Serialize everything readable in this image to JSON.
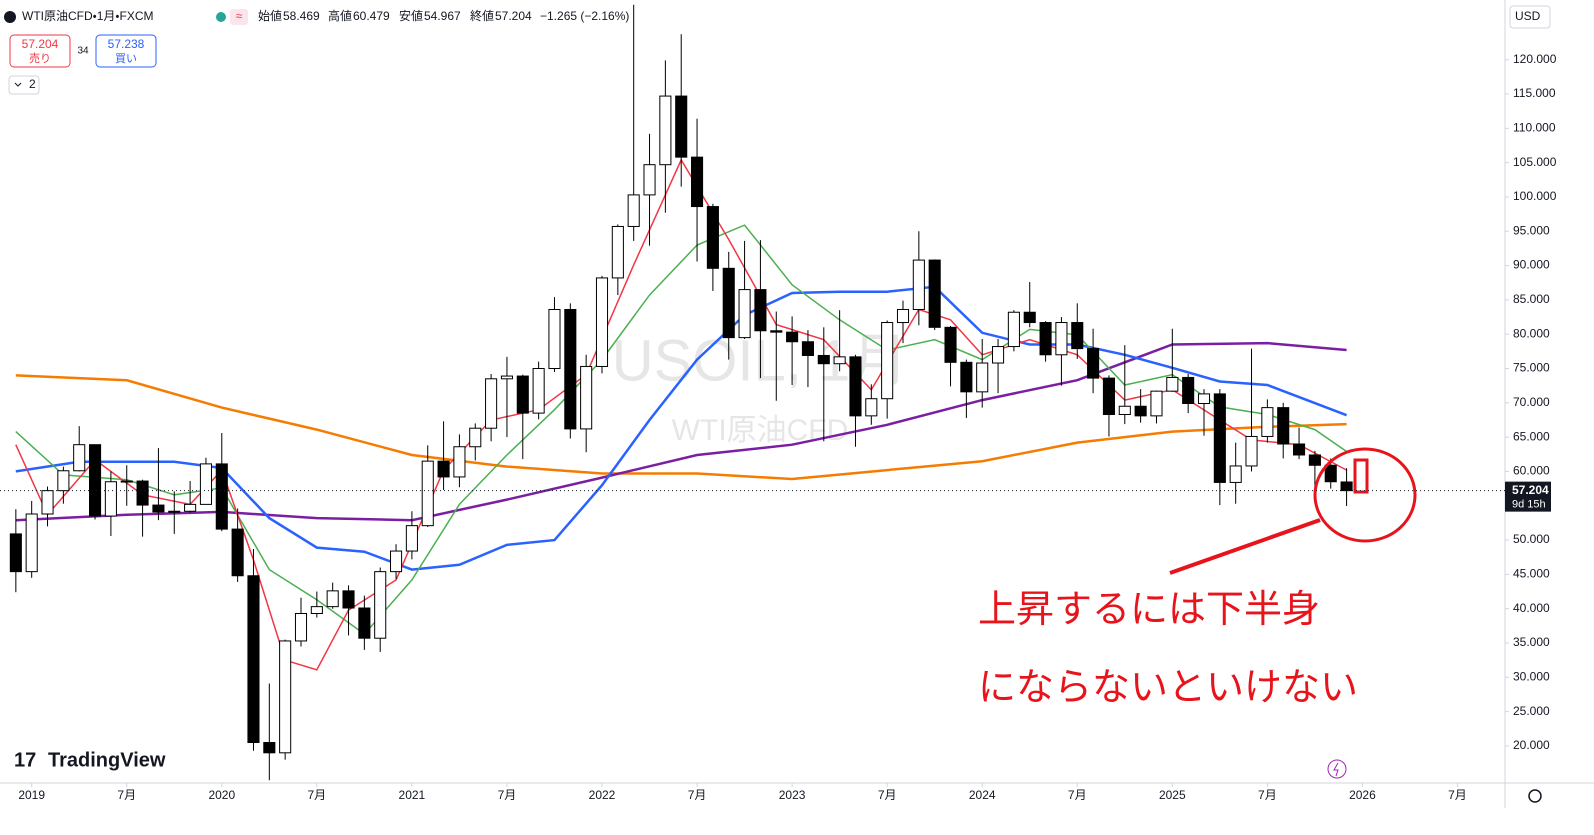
{
  "header": {
    "symbol": "WTI原油CFD・1月・FXCM",
    "open_label": "始値",
    "high_label": "高値",
    "low_label": "安値",
    "close_label": "終値",
    "change": "−1.265 (−2.16%)",
    "sell_price": 57.204,
    "sell_label": "売り",
    "spread": 34,
    "buy_price": 57.238,
    "buy_label": "買い",
    "indicator_count": 2,
    "currency": "USD",
    "logo": "TradingView"
  },
  "chart_data": {
    "type": "candlestick",
    "watermark": "USOIL, 1月",
    "watermark_sub": "WTI原油CFD",
    "annotations": [
      "上昇するには下半身",
      "にならないといけない"
    ],
    "x": [
      "2018-12",
      "2019-01",
      "2019-02",
      "2019-03",
      "2019-04",
      "2019-05",
      "2019-06",
      "2019-07",
      "2019-08",
      "2019-09",
      "2019-10",
      "2019-11",
      "2019-12",
      "2020-01",
      "2020-02",
      "2020-03",
      "2020-04",
      "2020-05",
      "2020-06",
      "2020-07",
      "2020-08",
      "2020-09",
      "2020-10",
      "2020-11",
      "2020-12",
      "2021-01",
      "2021-02",
      "2021-03",
      "2021-04",
      "2021-05",
      "2021-06",
      "2021-07",
      "2021-08",
      "2021-09",
      "2021-10",
      "2021-11",
      "2021-12",
      "2022-01",
      "2022-02",
      "2022-03",
      "2022-04",
      "2022-05",
      "2022-06",
      "2022-07",
      "2022-08",
      "2022-09",
      "2022-10",
      "2022-11",
      "2022-12",
      "2023-01",
      "2023-02",
      "2023-03",
      "2023-04",
      "2023-05",
      "2023-06",
      "2023-07",
      "2023-08",
      "2023-09",
      "2023-10",
      "2023-11",
      "2023-12",
      "2024-01",
      "2024-02",
      "2024-03",
      "2024-04",
      "2024-05",
      "2024-06",
      "2024-07",
      "2024-08",
      "2024-09",
      "2024-10",
      "2024-11",
      "2024-12",
      "2025-01",
      "2025-02",
      "2025-03",
      "2025-04",
      "2025-05",
      "2025-06",
      "2025-07",
      "2025-08",
      "2025-09",
      "2025-10",
      "2025-11",
      "2025-12"
    ],
    "open": [
      50.9,
      45.4,
      53.8,
      57.2,
      60.1,
      63.9,
      53.5,
      58.5,
      58.6,
      55.1,
      54.1,
      54.2,
      55.2,
      61.1,
      51.6,
      44.8,
      20.5,
      19.0,
      35.3,
      39.3,
      40.3,
      42.6,
      40.1,
      35.7,
      45.4,
      48.4,
      52.1,
      61.5,
      59.2,
      63.6,
      66.3,
      73.5,
      73.9,
      68.5,
      75.0,
      83.6,
      66.2,
      75.3,
      88.2,
      95.7,
      100.3,
      104.7,
      114.7,
      105.8,
      98.6,
      89.6,
      79.5,
      86.5,
      80.5,
      80.3,
      78.9,
      76.9,
      75.7,
      76.7,
      68.1,
      70.6,
      81.7,
      83.6,
      90.8,
      81.0,
      75.9,
      71.6,
      75.8,
      78.2,
      83.2,
      81.7,
      77.0,
      81.7,
      77.9,
      73.6,
      68.3,
      69.5,
      68.1,
      71.7,
      73.7,
      69.9,
      71.3,
      58.4,
      60.8,
      65.1,
      69.3,
      64.0,
      62.4,
      60.9,
      58.469
    ],
    "high": [
      54.5,
      55.7,
      57.8,
      60.7,
      66.6,
      63.9,
      60.0,
      60.9,
      58.8,
      63.4,
      57.1,
      58.6,
      62.0,
      65.6,
      54.6,
      48.7,
      29.1,
      35.5,
      41.6,
      42.5,
      43.8,
      43.4,
      41.9,
      46.0,
      49.4,
      54.2,
      63.8,
      67.3,
      65.4,
      67.0,
      74.2,
      76.7,
      74.1,
      76.0,
      85.4,
      84.5,
      77.0,
      88.5,
      96.0,
      128.0,
      109.2,
      119.9,
      123.7,
      111.4,
      99.0,
      92.0,
      93.6,
      93.7,
      83.3,
      82.6,
      80.6,
      81.0,
      83.5,
      77.0,
      72.7,
      82.0,
      84.9,
      95.0,
      90.9,
      81.2,
      76.3,
      79.3,
      79.3,
      83.5,
      87.6,
      81.9,
      82.5,
      84.5,
      80.8,
      74.0,
      78.4,
      72.0,
      71.8,
      80.8,
      74.2,
      72.0,
      72.0,
      64.2,
      77.9,
      70.5,
      70.0,
      66.4,
      63.0,
      61.9,
      60.479
    ],
    "low": [
      42.4,
      44.5,
      52.0,
      55.3,
      60.0,
      53.0,
      50.6,
      55.0,
      50.5,
      52.9,
      50.9,
      54.0,
      55.2,
      51.3,
      43.9,
      19.3,
      15.0,
      18.0,
      34.5,
      38.7,
      40.0,
      36.1,
      34.0,
      33.7,
      44.3,
      47.2,
      51.9,
      57.3,
      57.7,
      61.6,
      64.4,
      65.0,
      61.8,
      67.6,
      74.5,
      64.8,
      62.8,
      74.3,
      85.7,
      93.6,
      92.9,
      97.7,
      101.5,
      90.6,
      86.3,
      76.3,
      79.3,
      73.6,
      70.3,
      72.6,
      72.3,
      64.4,
      74.6,
      63.6,
      66.8,
      67.7,
      78.7,
      81.3,
      80.6,
      72.4,
      67.8,
      69.3,
      71.4,
      77.5,
      81.0,
      76.0,
      72.5,
      76.4,
      71.4,
      65.1,
      66.9,
      67.1,
      67.0,
      71.6,
      68.5,
      65.2,
      55.1,
      55.3,
      60.0,
      64.2,
      61.9,
      61.8,
      55.9,
      57.5,
      54.967
    ],
    "close": [
      45.4,
      53.8,
      57.2,
      60.1,
      63.9,
      53.5,
      58.5,
      58.6,
      55.1,
      54.1,
      54.2,
      55.2,
      61.1,
      51.6,
      44.8,
      20.5,
      19.0,
      35.3,
      39.3,
      40.3,
      42.6,
      40.1,
      35.7,
      45.4,
      48.4,
      52.1,
      61.5,
      59.2,
      63.6,
      66.3,
      73.5,
      73.9,
      68.5,
      75.0,
      83.6,
      66.2,
      75.3,
      88.2,
      95.7,
      100.3,
      104.7,
      114.7,
      105.8,
      98.6,
      89.6,
      79.5,
      86.5,
      80.5,
      80.3,
      78.9,
      76.9,
      75.7,
      76.7,
      68.1,
      70.6,
      81.7,
      83.6,
      90.8,
      81.0,
      75.9,
      71.6,
      75.8,
      78.2,
      83.2,
      81.7,
      77.0,
      81.7,
      77.9,
      73.6,
      68.3,
      69.5,
      68.1,
      71.7,
      73.7,
      69.9,
      71.3,
      58.4,
      60.8,
      65.1,
      69.3,
      64.0,
      62.4,
      60.9,
      58.5,
      57.204
    ],
    "up_color": "#ffffff",
    "down_color": "#000000",
    "wick_color": "#000000",
    "overlays": [
      {
        "color": "#f57c00",
        "x": [
          "2018-12",
          "2019-07",
          "2020-01",
          "2020-07",
          "2021-01",
          "2021-07",
          "2022-01",
          "2022-07",
          "2023-01",
          "2023-07",
          "2024-01",
          "2024-07",
          "2025-01",
          "2025-07",
          "2025-12"
        ],
        "values": [
          74.0,
          73.3,
          69.3,
          66.1,
          62.4,
          60.7,
          59.7,
          59.7,
          58.9,
          60.2,
          61.5,
          64.2,
          65.8,
          66.5,
          66.9
        ]
      },
      {
        "color": "#7b1fa2",
        "x": [
          "2018-12",
          "2019-07",
          "2020-01",
          "2020-07",
          "2021-01",
          "2021-07",
          "2022-01",
          "2022-07",
          "2023-01",
          "2023-07",
          "2024-01",
          "2024-07",
          "2025-01",
          "2025-07",
          "2025-12"
        ],
        "values": [
          52.9,
          53.7,
          54.1,
          53.2,
          52.9,
          55.9,
          59.1,
          62.4,
          63.9,
          66.8,
          70.4,
          73.3,
          78.5,
          78.7,
          77.7
        ]
      },
      {
        "color": "#2962ff",
        "x": [
          "2018-12",
          "2019-04",
          "2019-10",
          "2020-01",
          "2020-04",
          "2020-07",
          "2020-10",
          "2021-01",
          "2021-04",
          "2021-07",
          "2021-10",
          "2022-01",
          "2022-04",
          "2022-07",
          "2022-10",
          "2023-01",
          "2023-04",
          "2023-07",
          "2023-10",
          "2024-01",
          "2024-04",
          "2024-07",
          "2024-10",
          "2025-01",
          "2025-04",
          "2025-07",
          "2025-12"
        ],
        "values": [
          60.0,
          61.4,
          61.4,
          60.5,
          53.2,
          48.9,
          48.3,
          45.7,
          46.4,
          49.3,
          50.0,
          58.0,
          67.5,
          76.3,
          82.8,
          86.0,
          86.2,
          86.2,
          86.9,
          80.2,
          78.5,
          78.5,
          77.0,
          75.1,
          73.1,
          72.6,
          68.2
        ]
      },
      {
        "color": "#4caf50",
        "x": [
          "2018-12",
          "2019-03",
          "2019-07",
          "2019-10",
          "2020-01",
          "2020-04",
          "2020-07",
          "2020-10",
          "2021-01",
          "2021-04",
          "2021-07",
          "2021-10",
          "2022-01",
          "2022-04",
          "2022-07",
          "2022-10",
          "2023-01",
          "2023-04",
          "2023-07",
          "2023-10",
          "2024-01",
          "2024-04",
          "2024-07",
          "2024-10",
          "2025-01",
          "2025-04",
          "2025-07",
          "2025-10",
          "2025-12"
        ],
        "values": [
          65.8,
          59.5,
          58.8,
          56.6,
          57.6,
          45.7,
          41.3,
          36.3,
          44.2,
          55.2,
          62.4,
          69.0,
          76.3,
          85.7,
          93.0,
          95.9,
          87.2,
          82.1,
          77.7,
          79.2,
          76.3,
          80.7,
          79.9,
          72.6,
          74.1,
          69.4,
          68.3,
          66.1,
          62.9
        ]
      },
      {
        "color": "#f23645",
        "x": [
          "2018-12",
          "2019-02",
          "2019-05",
          "2019-08",
          "2019-11",
          "2020-01",
          "2020-03",
          "2020-05",
          "2020-07",
          "2020-09",
          "2020-12",
          "2021-03",
          "2021-06",
          "2021-09",
          "2021-12",
          "2022-03",
          "2022-06",
          "2022-09",
          "2022-12",
          "2023-03",
          "2023-06",
          "2023-09",
          "2023-11",
          "2024-01",
          "2024-04",
          "2024-07",
          "2024-10",
          "2025-01",
          "2025-04",
          "2025-06",
          "2025-09",
          "2025-12"
        ],
        "values": [
          63.9,
          53.7,
          61.7,
          56.6,
          55.2,
          60.2,
          47.1,
          32.5,
          31.1,
          39.8,
          44.2,
          60.2,
          67.5,
          69.0,
          74.1,
          90.1,
          105.4,
          93.8,
          81.4,
          79.2,
          71.9,
          83.6,
          82.1,
          77.0,
          79.2,
          77.0,
          70.4,
          71.9,
          67.5,
          64.6,
          63.9,
          60.2
        ]
      }
    ],
    "xlim": [
      "2018-11",
      "2026-10"
    ],
    "xticks": [
      {
        "value": "2019-01",
        "label": "2019"
      },
      {
        "value": "2019-07",
        "label": "7月"
      },
      {
        "value": "2020-01",
        "label": "2020"
      },
      {
        "value": "2020-07",
        "label": "7月"
      },
      {
        "value": "2021-01",
        "label": "2021"
      },
      {
        "value": "2021-07",
        "label": "7月"
      },
      {
        "value": "2022-01",
        "label": "2022"
      },
      {
        "value": "2022-07",
        "label": "7月"
      },
      {
        "value": "2023-01",
        "label": "2023"
      },
      {
        "value": "2023-07",
        "label": "7月"
      },
      {
        "value": "2024-01",
        "label": "2024"
      },
      {
        "value": "2024-07",
        "label": "7月"
      },
      {
        "value": "2025-01",
        "label": "2025"
      },
      {
        "value": "2025-07",
        "label": "7月"
      },
      {
        "value": "2026-01",
        "label": "2026"
      },
      {
        "value": "2026-07",
        "label": "7月"
      }
    ],
    "ylim": [
      14.6,
      128.7
    ],
    "yticks": [
      {
        "value": 20,
        "label": "20.000"
      },
      {
        "value": 25,
        "label": "25.000"
      },
      {
        "value": 30,
        "label": "30.000"
      },
      {
        "value": 35,
        "label": "35.000"
      },
      {
        "value": 40,
        "label": "40.000"
      },
      {
        "value": 45,
        "label": "45.000"
      },
      {
        "value": 50,
        "label": "50.000"
      },
      {
        "value": 55,
        "label": "55.000"
      },
      {
        "value": 60,
        "label": "60.000"
      },
      {
        "value": 65,
        "label": "65.000"
      },
      {
        "value": 70,
        "label": "70.000"
      },
      {
        "value": 75,
        "label": "75.000"
      },
      {
        "value": 80,
        "label": "80.000"
      },
      {
        "value": 85,
        "label": "85.000"
      },
      {
        "value": 90,
        "label": "90.000"
      },
      {
        "value": 95,
        "label": "95.000"
      },
      {
        "value": 100,
        "label": "100.000"
      },
      {
        "value": 105,
        "label": "105.000"
      },
      {
        "value": 110,
        "label": "110.000"
      },
      {
        "value": 115,
        "label": "115.000"
      },
      {
        "value": 120,
        "label": "120.000"
      }
    ],
    "price_line": 57.204,
    "countdown": "9d 15h",
    "grid": false
  }
}
